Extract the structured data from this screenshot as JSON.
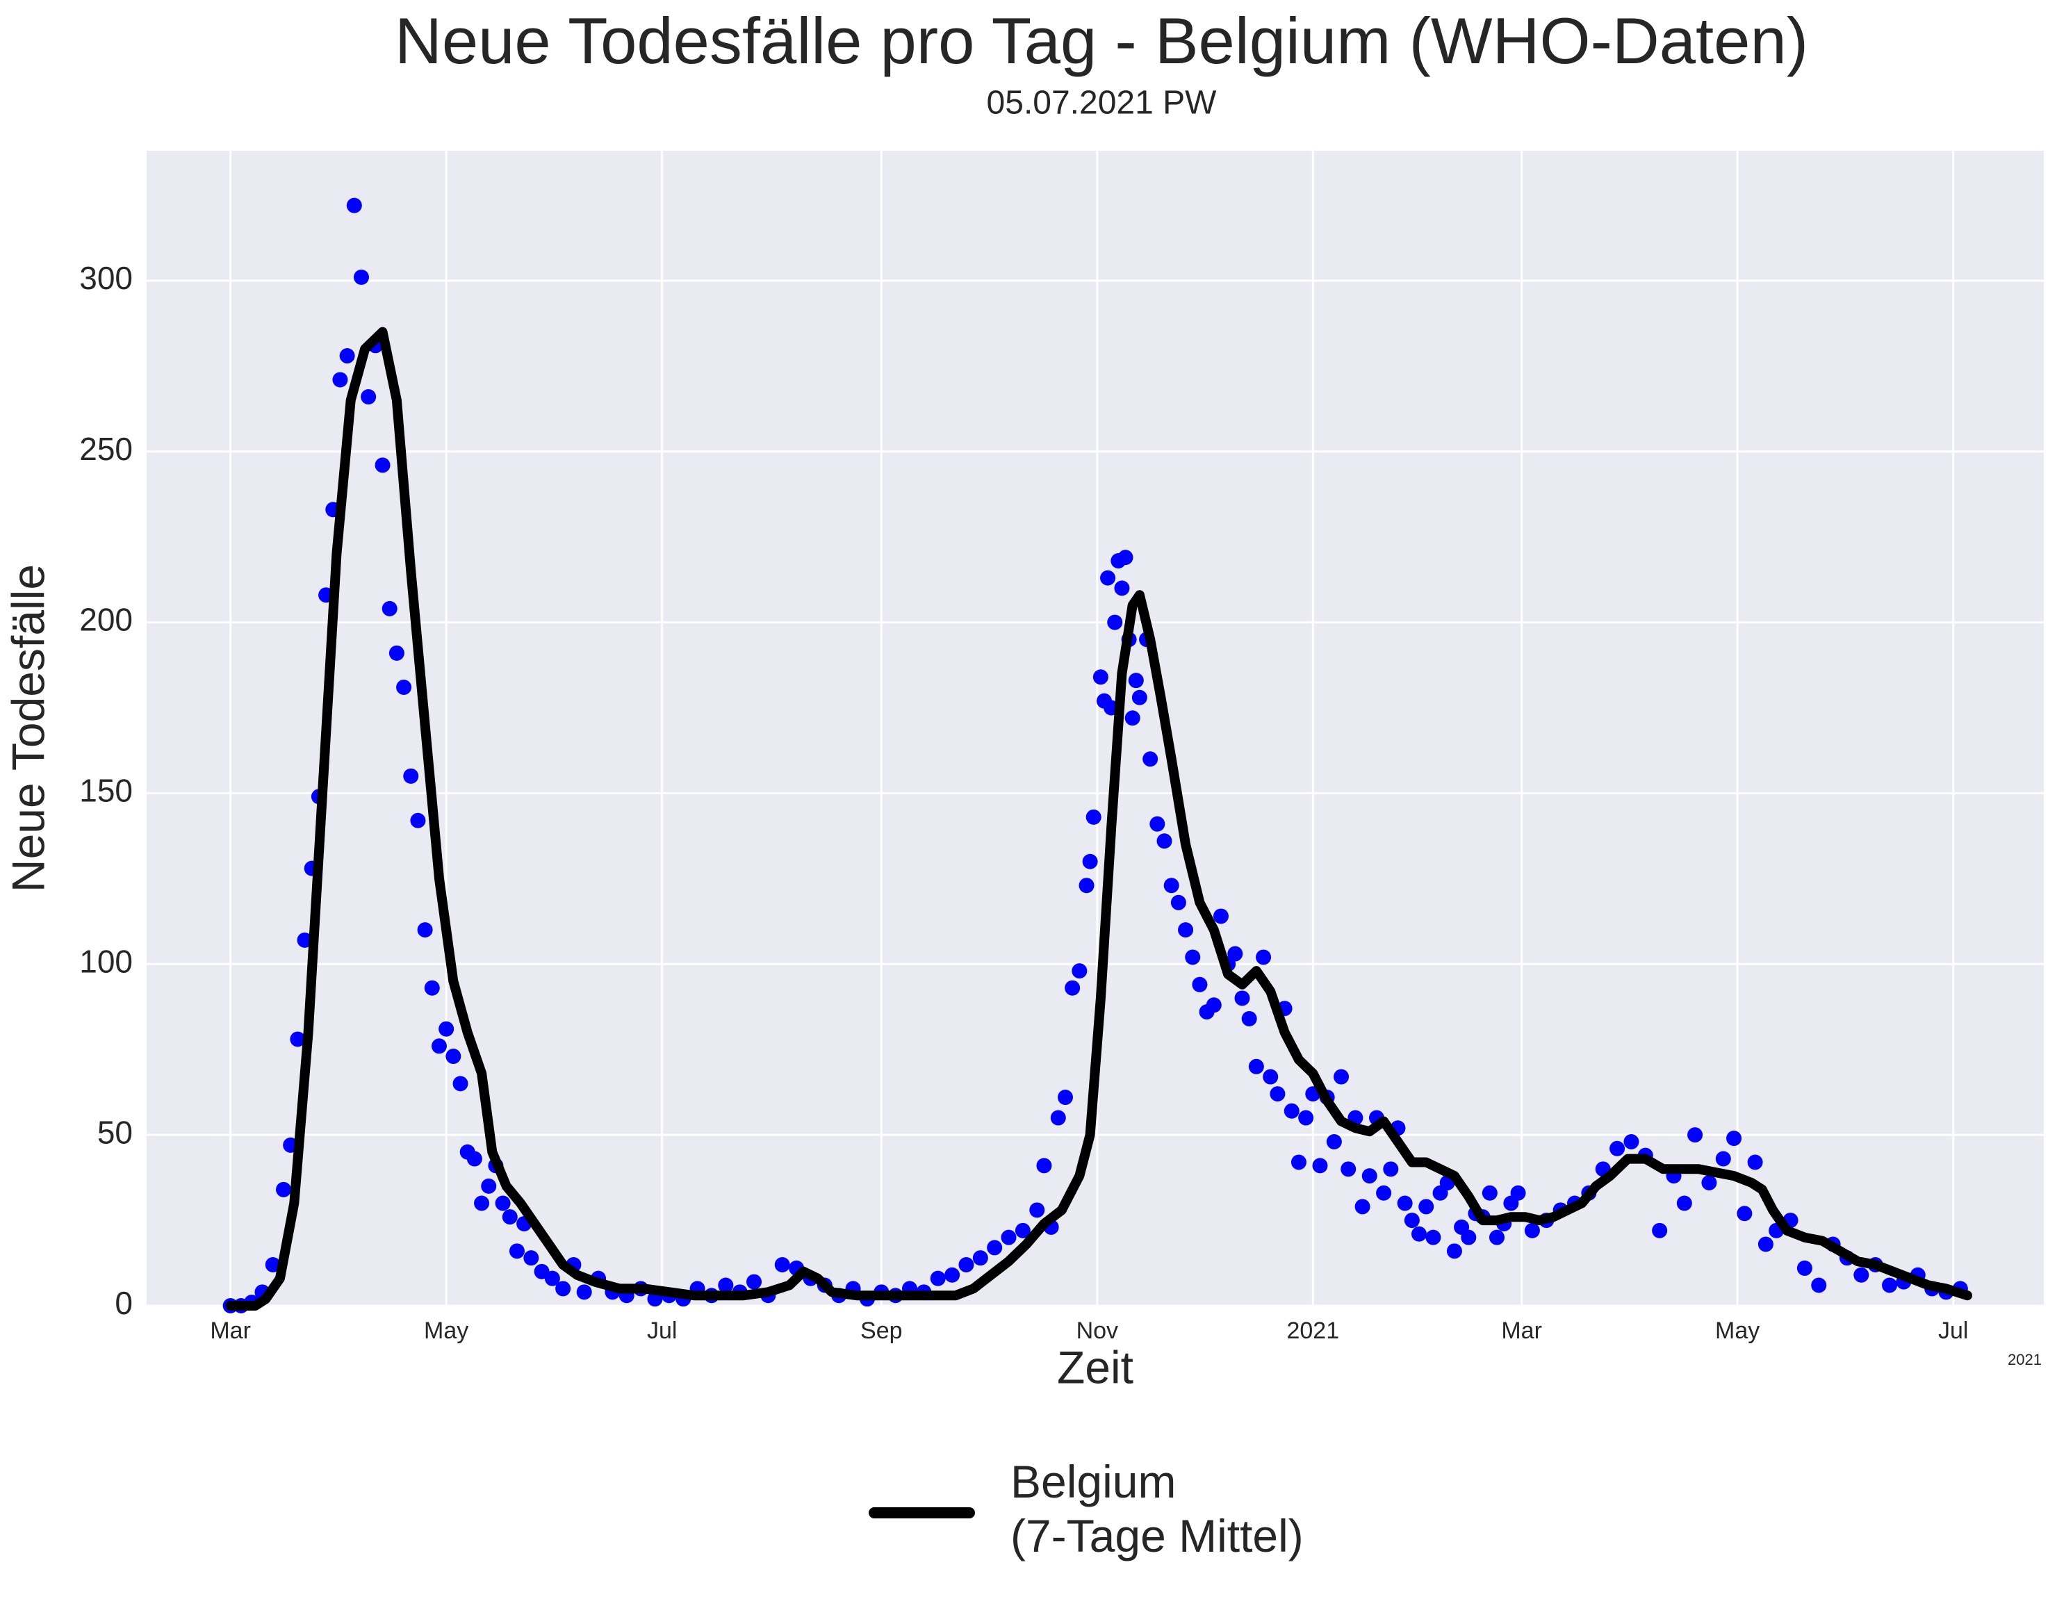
{
  "chart_data": {
    "type": "line",
    "title": "Neue Todesfälle pro Tag - Belgium (WHO-Daten)",
    "subtitle": "05.07.2021 PW",
    "x_label": "Zeit",
    "y_label": "Neue Todesfälle",
    "x_offset_label": "2021",
    "xlim": [
      -23.7,
      512.6
    ],
    "ylim": [
      0,
      338
    ],
    "xticks": [
      {
        "value": 0,
        "label": "Mar"
      },
      {
        "value": 61,
        "label": "May"
      },
      {
        "value": 122,
        "label": "Jul"
      },
      {
        "value": 184,
        "label": "Sep"
      },
      {
        "value": 245,
        "label": "Nov"
      },
      {
        "value": 306,
        "label": "2021"
      },
      {
        "value": 365,
        "label": "Mar"
      },
      {
        "value": 426,
        "label": "May"
      },
      {
        "value": 487,
        "label": "Jul"
      }
    ],
    "yticks": [
      0,
      50,
      100,
      150,
      200,
      250,
      300
    ],
    "grid": true,
    "legend_position": "below",
    "series": [
      {
        "name": "Belgium\n(7-Tage Mittel)",
        "mode": "line",
        "color": "#000000",
        "x": [
          0,
          7,
          10,
          14,
          18,
          22,
          26,
          30,
          34,
          38,
          43,
          47,
          51,
          55,
          59,
          63,
          67,
          71,
          74,
          78,
          82,
          86,
          90,
          94,
          98,
          103,
          110,
          117,
          124,
          131,
          138,
          145,
          152,
          158,
          162,
          166,
          170,
          177,
          184,
          191,
          198,
          205,
          210,
          215,
          220,
          225,
          230,
          235,
          240,
          243,
          246,
          249,
          252,
          255,
          257,
          260,
          263,
          266,
          270,
          274,
          278,
          282,
          286,
          290,
          294,
          298,
          302,
          306,
          310,
          314,
          318,
          322,
          326,
          330,
          334,
          338,
          342,
          346,
          350,
          354,
          358,
          362,
          366,
          370,
          374,
          378,
          382,
          386,
          390,
          395,
          400,
          405,
          410,
          415,
          420,
          425,
          430,
          433,
          436,
          440,
          445,
          450,
          455,
          460,
          465,
          470,
          475,
          480,
          485,
          491
        ],
        "values": [
          0,
          0,
          2,
          8,
          30,
          80,
          150,
          220,
          265,
          280,
          285,
          265,
          215,
          170,
          125,
          95,
          80,
          68,
          45,
          35,
          30,
          24,
          18,
          12,
          9,
          7,
          5,
          5,
          4,
          3,
          3,
          3,
          4,
          6,
          10,
          8,
          4,
          3,
          3,
          3,
          3,
          3,
          5,
          9,
          13,
          18,
          24,
          28,
          38,
          50,
          90,
          140,
          185,
          205,
          208,
          195,
          178,
          160,
          135,
          118,
          110,
          97,
          94,
          98,
          92,
          80,
          72,
          68,
          60,
          54,
          52,
          51,
          54,
          48,
          42,
          42,
          40,
          38,
          32,
          25,
          25,
          26,
          26,
          25,
          26,
          28,
          30,
          35,
          38,
          43,
          43,
          40,
          40,
          40,
          39,
          38,
          36,
          34,
          28,
          22,
          20,
          19,
          16,
          13,
          12,
          10,
          8,
          6,
          5,
          3
        ]
      },
      {
        "mode": "scatter",
        "color": "#0000ff",
        "x": [
          0,
          3,
          6,
          9,
          12,
          15,
          17,
          19,
          21,
          23,
          25,
          27,
          29,
          31,
          33,
          35,
          37,
          39,
          41,
          43,
          45,
          47,
          49,
          51,
          53,
          55,
          57,
          59,
          61,
          63,
          65,
          67,
          69,
          71,
          73,
          75,
          77,
          79,
          81,
          83,
          85,
          88,
          91,
          94,
          97,
          100,
          104,
          108,
          112,
          116,
          120,
          124,
          128,
          132,
          136,
          140,
          144,
          148,
          152,
          156,
          160,
          164,
          168,
          172,
          176,
          180,
          184,
          188,
          192,
          196,
          200,
          204,
          208,
          212,
          216,
          220,
          224,
          228,
          230,
          232,
          234,
          236,
          238,
          240,
          242,
          243,
          244,
          246,
          247,
          248,
          249,
          250,
          251,
          252,
          253,
          254,
          255,
          256,
          257,
          259,
          260,
          262,
          264,
          266,
          268,
          270,
          272,
          274,
          276,
          278,
          280,
          282,
          284,
          286,
          288,
          290,
          292,
          294,
          296,
          298,
          300,
          302,
          304,
          306,
          308,
          310,
          312,
          314,
          316,
          318,
          320,
          322,
          324,
          326,
          328,
          330,
          332,
          334,
          336,
          338,
          340,
          342,
          344,
          346,
          348,
          350,
          352,
          354,
          356,
          358,
          360,
          362,
          364,
          368,
          372,
          376,
          380,
          384,
          388,
          392,
          396,
          400,
          404,
          408,
          411,
          414,
          418,
          422,
          425,
          428,
          431,
          434,
          437,
          441,
          445,
          449,
          453,
          457,
          461,
          465,
          469,
          473,
          477,
          481,
          485,
          489
        ],
        "values": [
          0,
          0,
          1,
          4,
          12,
          34,
          47,
          78,
          107,
          128,
          149,
          208,
          233,
          271,
          278,
          322,
          301,
          266,
          281,
          246,
          204,
          191,
          181,
          155,
          142,
          110,
          93,
          76,
          81,
          73,
          65,
          45,
          43,
          30,
          35,
          41,
          30,
          26,
          16,
          24,
          14,
          10,
          8,
          5,
          12,
          4,
          8,
          4,
          3,
          5,
          2,
          3,
          2,
          5,
          3,
          6,
          4,
          7,
          3,
          12,
          11,
          8,
          6,
          3,
          5,
          2,
          4,
          3,
          5,
          4,
          8,
          9,
          12,
          14,
          17,
          20,
          22,
          28,
          41,
          23,
          55,
          61,
          93,
          98,
          123,
          130,
          143,
          184,
          177,
          213,
          175,
          200,
          218,
          210,
          219,
          195,
          172,
          183,
          178,
          195,
          160,
          141,
          136,
          123,
          118,
          110,
          102,
          94,
          86,
          88,
          114,
          100,
          103,
          90,
          84,
          70,
          102,
          67,
          62,
          87,
          57,
          42,
          55,
          62,
          41,
          61,
          48,
          67,
          40,
          55,
          29,
          38,
          55,
          33,
          40,
          52,
          30,
          25,
          21,
          29,
          20,
          33,
          36,
          16,
          23,
          20,
          27,
          26,
          33,
          20,
          24,
          30,
          33,
          22,
          25,
          28,
          30,
          33,
          40,
          46,
          48,
          44,
          22,
          38,
          30,
          50,
          36,
          43,
          49,
          27,
          42,
          18,
          22,
          25,
          11,
          6,
          18,
          14,
          9,
          12,
          6,
          7,
          9,
          5,
          4,
          5
        ]
      }
    ]
  }
}
